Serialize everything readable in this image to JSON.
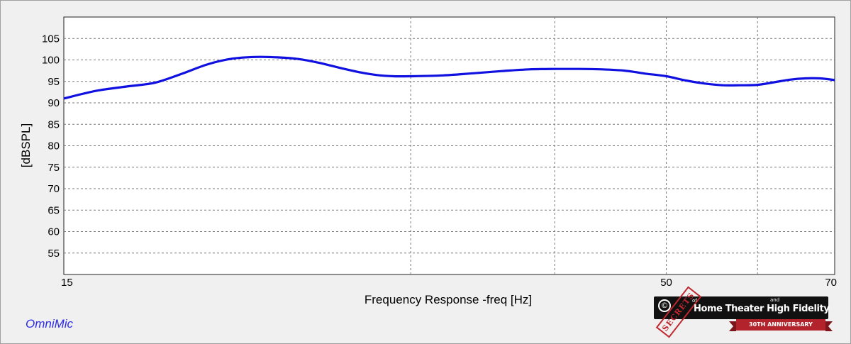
{
  "chart_data": {
    "type": "line",
    "title": "",
    "xlabel": "Frequency Response -freq [Hz]",
    "ylabel": "[dBSPL]",
    "x_scale": "log",
    "xlim": [
      15,
      70
    ],
    "ylim": [
      50,
      110
    ],
    "x_tick_labels": [
      "15",
      "50",
      "70"
    ],
    "x_gridlines": [
      30,
      40,
      50,
      60,
      70
    ],
    "y_ticks": [
      55,
      60,
      65,
      70,
      75,
      80,
      85,
      90,
      95,
      100,
      105
    ],
    "grid": true,
    "line_color": "#1010e0",
    "series": [
      {
        "x": [
          15,
          16,
          17,
          18,
          19,
          20,
          21,
          22,
          23,
          24,
          25,
          26,
          27,
          28,
          29,
          30,
          32,
          34,
          36,
          38,
          40,
          42,
          44,
          46,
          48,
          50,
          52,
          54,
          56,
          58,
          60,
          62,
          64,
          66,
          68,
          70
        ],
        "y": [
          91,
          92.8,
          93.8,
          94.7,
          96.8,
          99,
          100.3,
          100.7,
          100.6,
          100.2,
          99.3,
          98.2,
          97.2,
          96.5,
          96.2,
          96.2,
          96.4,
          96.9,
          97.4,
          97.8,
          97.9,
          97.9,
          97.8,
          97.5,
          96.8,
          96.2,
          95.2,
          94.5,
          94.1,
          94.1,
          94.2,
          94.8,
          95.4,
          95.7,
          95.7,
          95.3
        ]
      }
    ]
  },
  "watermark": "OmniMic",
  "logo": {
    "stamp": "SECRETS",
    "of": "of",
    "and": "and",
    "title": "Home Theater High Fidelity",
    "ribbon": "30TH ANNIVERSARY"
  },
  "colors": {
    "background": "#f0f0f0",
    "plot_background": "#ffffff",
    "brand": "#2a2ae6",
    "grid": "#7a7a7a"
  }
}
